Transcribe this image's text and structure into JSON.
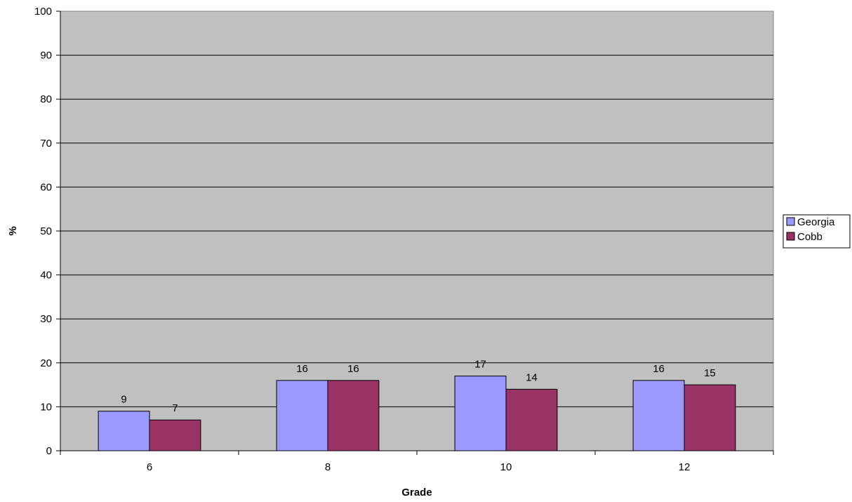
{
  "chart_data": {
    "type": "bar",
    "categories": [
      "6",
      "8",
      "10",
      "12"
    ],
    "series": [
      {
        "name": "Georgia",
        "values": [
          9,
          16,
          17,
          16
        ],
        "color": "#9999ff"
      },
      {
        "name": "Cobb",
        "values": [
          7,
          16,
          14,
          15
        ],
        "color": "#993366"
      }
    ],
    "xlabel": "Grade",
    "ylabel": "%",
    "ylim": [
      0,
      100
    ],
    "yticks": [
      0,
      10,
      20,
      30,
      40,
      50,
      60,
      70,
      80,
      90,
      100
    ],
    "grid": true,
    "legend": "right",
    "data_labels": true,
    "plot_background": "#c0c0c0"
  }
}
